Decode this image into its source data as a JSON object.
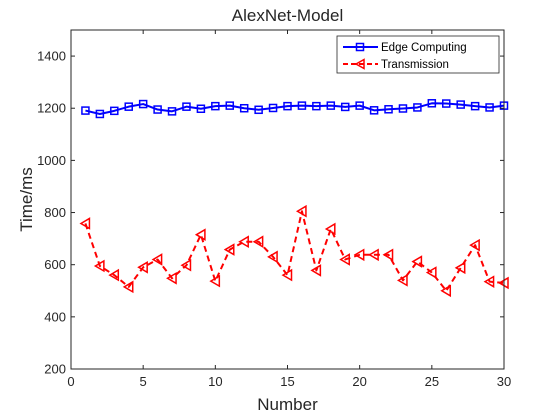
{
  "chart_data": {
    "type": "line",
    "title": "AlexNet-Model",
    "xlabel": "Number",
    "ylabel": "Time/ms",
    "xlim": [
      0,
      30
    ],
    "ylim": [
      200,
      1500
    ],
    "xticks": [
      0,
      5,
      10,
      15,
      20,
      25,
      30
    ],
    "yticks": [
      200,
      400,
      600,
      800,
      1000,
      1200,
      1400
    ],
    "grid": false,
    "legend_position": "top-right",
    "x": [
      1,
      2,
      3,
      4,
      5,
      6,
      7,
      8,
      9,
      10,
      11,
      12,
      13,
      14,
      15,
      16,
      17,
      18,
      19,
      20,
      21,
      22,
      23,
      24,
      25,
      26,
      27,
      28,
      29,
      30
    ],
    "series": [
      {
        "name": "Edge Computing",
        "color": "#0000ff",
        "line_style": "solid",
        "marker": "square",
        "values": [
          1191,
          1178,
          1190,
          1206,
          1216,
          1195,
          1188,
          1206,
          1198,
          1208,
          1210,
          1200,
          1194,
          1201,
          1208,
          1210,
          1208,
          1210,
          1205,
          1210,
          1192,
          1196,
          1199,
          1203,
          1219,
          1218,
          1214,
          1208,
          1203,
          1210
        ]
      },
      {
        "name": "Transmission",
        "color": "#ff0000",
        "line_style": "dashed",
        "marker": "triangle-left",
        "values": [
          758,
          595,
          560,
          515,
          590,
          620,
          548,
          598,
          715,
          537,
          658,
          688,
          688,
          630,
          560,
          805,
          578,
          737,
          620,
          638,
          638,
          638,
          540,
          612,
          570,
          500,
          588,
          675,
          535,
          530
        ]
      }
    ]
  }
}
